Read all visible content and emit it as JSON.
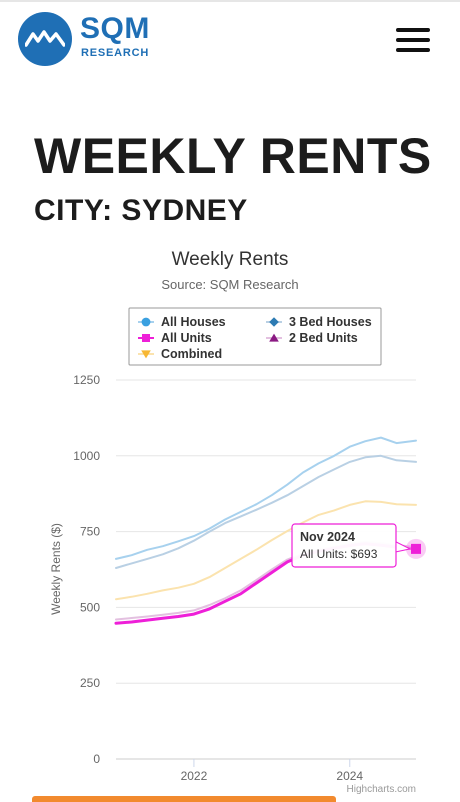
{
  "header": {
    "logo_name": "SQM",
    "logo_sub": "RESEARCH"
  },
  "page": {
    "title": "WEEKLY RENTS",
    "subtitle": "CITY: SYDNEY"
  },
  "chart_data": {
    "type": "line",
    "title": "Weekly Rents",
    "subtitle": "Source: SQM Research",
    "ylabel": "Weekly Rents ($)",
    "xlabel": "",
    "ylim": [
      0,
      1250
    ],
    "yticks": [
      0,
      250,
      500,
      750,
      1000,
      1250
    ],
    "xlim": [
      2021.0,
      2024.85
    ],
    "xticks": [
      2022,
      2024
    ],
    "grid": true,
    "legend_position": "top",
    "credits": "Highcharts.com",
    "x": [
      2021.0,
      2021.2,
      2021.4,
      2021.6,
      2021.8,
      2022.0,
      2022.2,
      2022.4,
      2022.6,
      2022.8,
      2023.0,
      2023.2,
      2023.4,
      2023.6,
      2023.8,
      2024.0,
      2024.2,
      2024.4,
      2024.6,
      2024.85
    ],
    "series": [
      {
        "name": "All Houses",
        "color": "#a7d1ee",
        "marker": "circle",
        "values": [
          660,
          672,
          690,
          702,
          718,
          735,
          760,
          790,
          815,
          840,
          870,
          905,
          945,
          975,
          1000,
          1030,
          1048,
          1060,
          1042,
          1050
        ]
      },
      {
        "name": "3 Bed Houses",
        "color": "#b9d0e4",
        "marker": "diamond",
        "values": [
          630,
          645,
          660,
          675,
          695,
          720,
          750,
          778,
          800,
          822,
          845,
          870,
          900,
          930,
          955,
          980,
          995,
          1000,
          985,
          980
        ]
      },
      {
        "name": "All Units",
        "color": "#ee1fd8",
        "marker": "square",
        "values": [
          448,
          452,
          458,
          464,
          470,
          478,
          495,
          520,
          545,
          580,
          615,
          650,
          672,
          685,
          695,
          704,
          710,
          705,
          699,
          693
        ]
      },
      {
        "name": "2 Bed Units",
        "color": "#e3c0e0",
        "marker": "triangle",
        "values": [
          460,
          465,
          470,
          476,
          482,
          490,
          508,
          530,
          556,
          590,
          625,
          658,
          678,
          690,
          700,
          710,
          716,
          712,
          705,
          700
        ]
      },
      {
        "name": "Combined",
        "color": "#fbe3ae",
        "marker": "triangle-down",
        "values": [
          527,
          535,
          545,
          556,
          565,
          578,
          600,
          630,
          660,
          690,
          722,
          752,
          780,
          805,
          820,
          838,
          850,
          848,
          840,
          838
        ]
      }
    ],
    "tooltip": {
      "date": "Nov 2024",
      "series": "All Units",
      "text": "All Units: $693"
    }
  }
}
